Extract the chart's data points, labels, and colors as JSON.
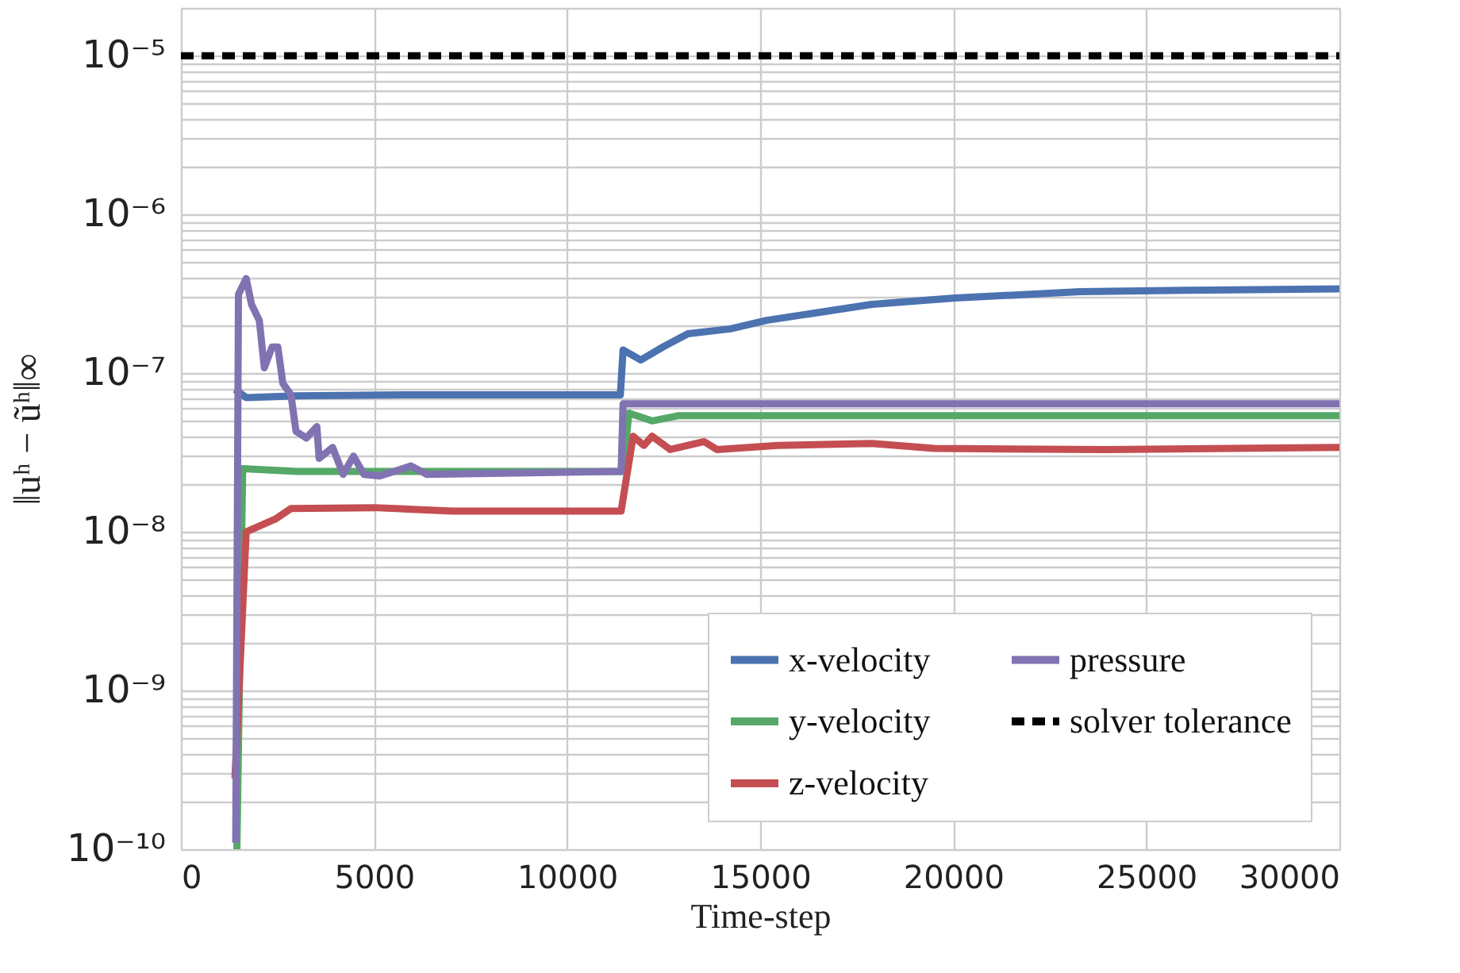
{
  "chart_data": {
    "type": "line",
    "xlabel": "Time-step",
    "ylabel": "‖uʰ − ũʰ‖∞",
    "xlim": [
      0,
      30000
    ],
    "xticks": [
      0,
      5000,
      10000,
      15000,
      20000,
      25000,
      30000
    ],
    "ylim": [
      1e-10,
      2e-05
    ],
    "log": true,
    "yticks": [
      {
        "value": 1e-10,
        "label": "10⁻¹⁰"
      },
      {
        "value": 1e-09,
        "label": "10⁻⁹"
      },
      {
        "value": 1e-08,
        "label": "10⁻⁸"
      },
      {
        "value": 1e-07,
        "label": "10⁻⁷"
      },
      {
        "value": 1e-06,
        "label": "10⁻⁶"
      },
      {
        "value": 1e-05,
        "label": "10⁻⁵"
      }
    ],
    "grid": true,
    "legend": "bottom right",
    "line_style": "solid",
    "series": [
      {
        "name": "x-velocity",
        "color": "#4c72b0",
        "x": [
          1400,
          1700,
          3000,
          6000,
          11380,
          11450,
          11910,
          12480,
          13130,
          14230,
          15170,
          17890,
          20040,
          23290,
          26020,
          30000
        ],
        "values": [
          7.9e-08,
          7e-08,
          7.2e-08,
          7.3e-08,
          7.3e-08,
          1.4e-07,
          1.21e-07,
          1.46e-07,
          1.77e-07,
          1.9e-07,
          2.15e-07,
          2.71e-07,
          2.97e-07,
          3.26e-07,
          3.33e-07,
          3.39e-07
        ]
      },
      {
        "name": "y-velocity",
        "color": "#55a868",
        "x": [
          1450,
          1600,
          3000,
          6000,
          11450,
          11600,
          12200,
          12900,
          30000
        ],
        "values": [
          1e-10,
          2.5e-08,
          2.4e-08,
          2.4e-08,
          2.4e-08,
          5.6e-08,
          5e-08,
          5.4e-08,
          5.4e-08
        ]
      },
      {
        "name": "z-velocity",
        "color": "#c44e52",
        "x": [
          1400,
          1690,
          2440,
          2850,
          5010,
          7030,
          11400,
          11710,
          11990,
          12200,
          12670,
          13550,
          13880,
          15450,
          17890,
          19510,
          23970,
          30000
        ],
        "values": [
          2.8e-10,
          1e-08,
          1.2e-08,
          1.4e-08,
          1.42e-08,
          1.35e-08,
          1.35e-08,
          4e-08,
          3.5e-08,
          4e-08,
          3.3e-08,
          3.7e-08,
          3.3e-08,
          3.5e-08,
          3.6e-08,
          3.35e-08,
          3.3e-08,
          3.4e-08
        ]
      },
      {
        "name": "pressure",
        "color": "#8172b2",
        "x": [
          1420,
          1490,
          1690,
          1830,
          2030,
          2160,
          2360,
          2510,
          2640,
          2850,
          2980,
          3250,
          3520,
          3580,
          3930,
          4200,
          4470,
          4740,
          5150,
          5960,
          6370,
          11400,
          11450,
          30000
        ],
        "values": [
          1.1e-10,
          3.13e-07,
          3.94e-07,
          2.7e-07,
          2.15e-07,
          1.08e-07,
          1.46e-07,
          1.46e-07,
          8.6e-08,
          7.3e-08,
          4.3e-08,
          3.9e-08,
          4.6e-08,
          2.9e-08,
          3.4e-08,
          2.3e-08,
          3e-08,
          2.3e-08,
          2.25e-08,
          2.6e-08,
          2.3e-08,
          2.4e-08,
          6.4e-08,
          6.4e-08
        ]
      }
    ],
    "ref_lines": [
      {
        "axis": "y",
        "value": 1e-05,
        "label": "solver tolerance",
        "color": "#000000",
        "line_style": "dashed"
      }
    ]
  }
}
